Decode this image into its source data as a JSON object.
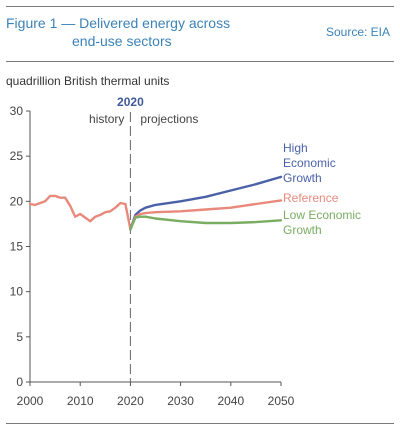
{
  "header": {
    "title_line1": "Figure 1 — Delivered energy across",
    "title_line2": "end-use sectors",
    "source": "Source: EIA"
  },
  "chart_data": {
    "type": "line",
    "ylabel": "quadrillion British thermal units",
    "xlim": [
      2000,
      2050
    ],
    "ylim": [
      0,
      30
    ],
    "x_ticks": [
      2000,
      2010,
      2020,
      2030,
      2040,
      2050
    ],
    "y_ticks": [
      0,
      5,
      10,
      15,
      20,
      25,
      30
    ],
    "grid": false,
    "divider": {
      "x": 2020,
      "label": "2020",
      "left_label": "history",
      "right_label": "projections"
    },
    "history": {
      "color": "#e8897c",
      "x": [
        2000,
        2001,
        2002,
        2003,
        2004,
        2005,
        2006,
        2007,
        2008,
        2009,
        2010,
        2011,
        2012,
        2013,
        2014,
        2015,
        2016,
        2017,
        2018,
        2019,
        2020
      ],
      "y": [
        19.7,
        19.6,
        19.8,
        20.0,
        20.6,
        20.6,
        20.4,
        20.4,
        19.5,
        18.3,
        18.6,
        18.2,
        17.8,
        18.3,
        18.5,
        18.8,
        18.9,
        19.3,
        19.8,
        19.7,
        16.9
      ]
    },
    "series": [
      {
        "name": "High Economic Growth",
        "label_lines": [
          "High",
          "Economic",
          "Growth"
        ],
        "color": "#4a61a8",
        "x": [
          2020,
          2021,
          2022,
          2023,
          2025,
          2030,
          2035,
          2040,
          2045,
          2050
        ],
        "y": [
          16.9,
          18.5,
          19.0,
          19.3,
          19.6,
          20.0,
          20.5,
          21.2,
          21.9,
          22.7
        ]
      },
      {
        "name": "Reference",
        "label_lines": [
          "Reference"
        ],
        "color": "#e8897c",
        "x": [
          2020,
          2021,
          2022,
          2023,
          2025,
          2030,
          2035,
          2040,
          2045,
          2050
        ],
        "y": [
          16.9,
          18.3,
          18.6,
          18.7,
          18.8,
          18.9,
          19.1,
          19.3,
          19.7,
          20.1
        ]
      },
      {
        "name": "Low Economic Growth",
        "label_lines": [
          "Low Economic",
          "Growth"
        ],
        "color": "#79ad62",
        "x": [
          2020,
          2021,
          2022,
          2023,
          2025,
          2030,
          2035,
          2040,
          2045,
          2050
        ],
        "y": [
          16.9,
          18.2,
          18.3,
          18.3,
          18.1,
          17.8,
          17.6,
          17.6,
          17.7,
          17.9
        ]
      }
    ]
  }
}
